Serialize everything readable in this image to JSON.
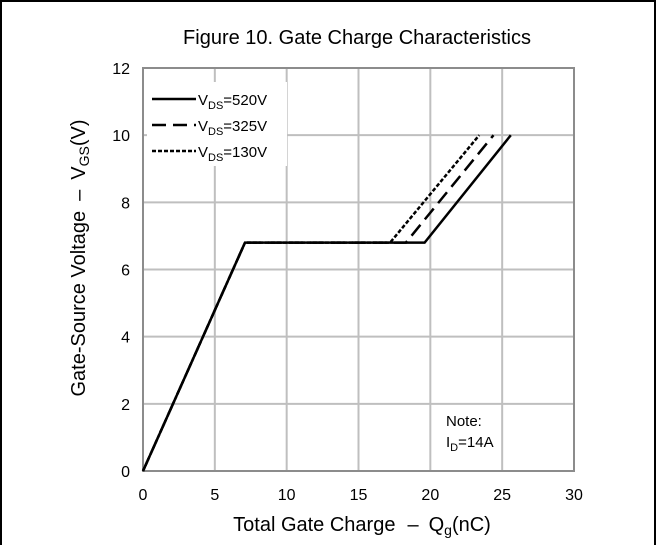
{
  "chart_data": {
    "type": "line",
    "title": "Figure 10. Gate Charge Characteristics",
    "xlabel": {
      "main": "Total Gate Charge",
      "dash": "–",
      "symbol": "Q",
      "sub": "g",
      "unit": "(nC)"
    },
    "ylabel": {
      "main": "Gate-Source Voltage",
      "dash": "–",
      "symbol": "V",
      "sub": "GS",
      "unit": "(V)"
    },
    "xlim": [
      0,
      30
    ],
    "ylim": [
      0,
      12
    ],
    "xticks": [
      "0",
      "5",
      "10",
      "15",
      "20",
      "25",
      "30"
    ],
    "yticks": [
      "0",
      "2",
      "4",
      "6",
      "8",
      "10",
      "12"
    ],
    "grid": true,
    "legend_position": "top-left",
    "series": [
      {
        "name": "VDS=520V",
        "label_main": "V",
        "label_sub": "DS",
        "label_rest": "=520V",
        "style": "solid",
        "x": [
          0,
          7.1,
          19.6,
          25.6
        ],
        "y": [
          0,
          6.8,
          6.8,
          10
        ]
      },
      {
        "name": "VDS=325V",
        "label_main": "V",
        "label_sub": "DS",
        "label_rest": "=325V",
        "style": "dashed",
        "x": [
          0,
          7.1,
          18.3,
          24.4
        ],
        "y": [
          0,
          6.8,
          6.8,
          10
        ]
      },
      {
        "name": "VDS=130V",
        "label_main": "V",
        "label_sub": "DS",
        "label_rest": "=130V",
        "style": "dotted",
        "x": [
          0,
          7.1,
          17.2,
          23.4
        ],
        "y": [
          0,
          6.8,
          6.8,
          10
        ]
      }
    ],
    "note": {
      "title": "Note:",
      "main": "I",
      "sub": "D",
      "rest": "=14A"
    }
  },
  "colors": {
    "line": "#000000",
    "grid": "#bfbfbf",
    "axes": "#8c8c8c",
    "border": "#000000"
  }
}
